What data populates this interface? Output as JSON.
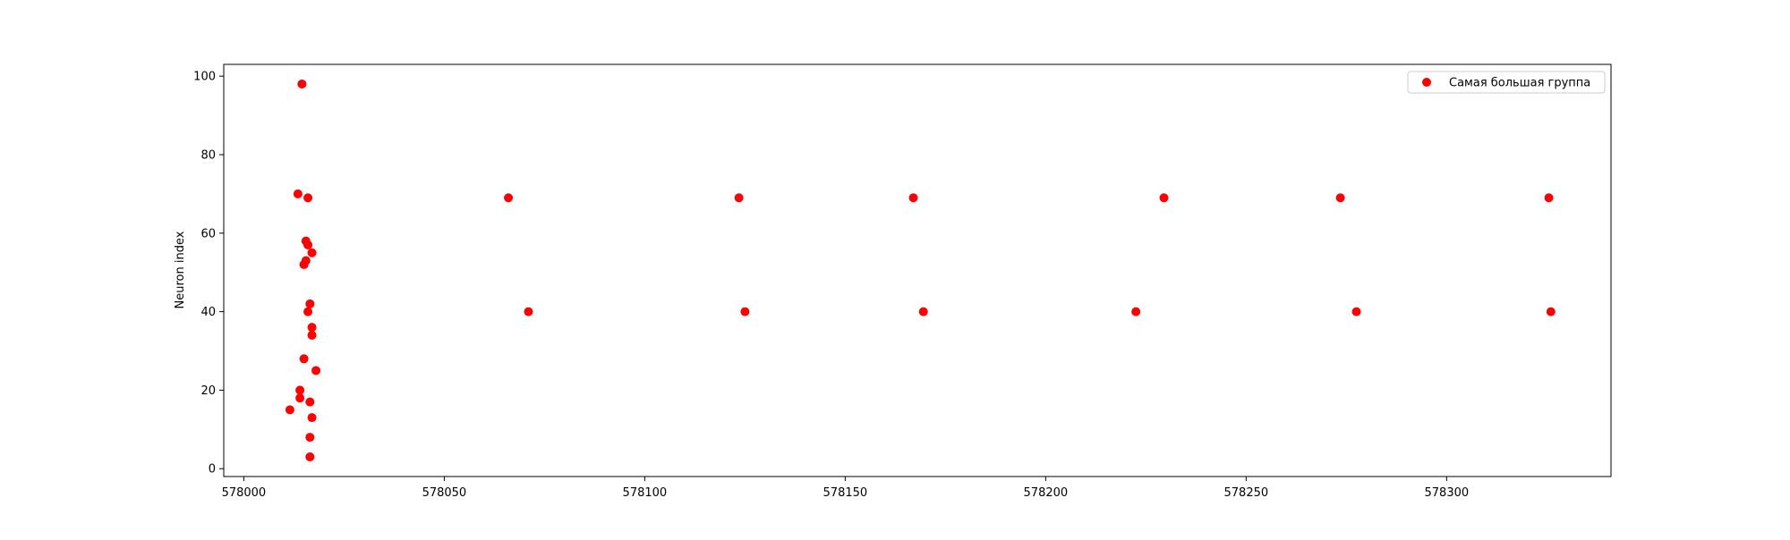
{
  "chart_data": {
    "type": "scatter",
    "title": "",
    "xlabel": "",
    "ylabel": "Neuron index",
    "xlim": [
      577995,
      578341
    ],
    "ylim": [
      -2,
      103
    ],
    "x_ticks": [
      578000,
      578050,
      578100,
      578150,
      578200,
      578250,
      578300
    ],
    "y_ticks": [
      0,
      20,
      40,
      60,
      80,
      100
    ],
    "grid": false,
    "legend_position": "top-right",
    "series": [
      {
        "name": "Самая большая группа",
        "color": "#ff0000",
        "marker": "circle",
        "points": [
          {
            "x": 578014.5,
            "y": 98
          },
          {
            "x": 578013.5,
            "y": 70
          },
          {
            "x": 578016.0,
            "y": 69
          },
          {
            "x": 578015.5,
            "y": 58
          },
          {
            "x": 578016.0,
            "y": 57
          },
          {
            "x": 578017.0,
            "y": 55
          },
          {
            "x": 578015.5,
            "y": 53
          },
          {
            "x": 578015.0,
            "y": 52
          },
          {
            "x": 578016.5,
            "y": 42
          },
          {
            "x": 578016.0,
            "y": 40
          },
          {
            "x": 578017.0,
            "y": 36
          },
          {
            "x": 578017.0,
            "y": 34
          },
          {
            "x": 578015.0,
            "y": 28
          },
          {
            "x": 578018.0,
            "y": 25
          },
          {
            "x": 578014.0,
            "y": 20
          },
          {
            "x": 578014.0,
            "y": 18
          },
          {
            "x": 578016.5,
            "y": 17
          },
          {
            "x": 578011.5,
            "y": 15
          },
          {
            "x": 578017.0,
            "y": 13
          },
          {
            "x": 578016.5,
            "y": 8
          },
          {
            "x": 578016.5,
            "y": 3
          },
          {
            "x": 578066.0,
            "y": 69
          },
          {
            "x": 578071.0,
            "y": 40
          },
          {
            "x": 578123.5,
            "y": 69
          },
          {
            "x": 578125.0,
            "y": 40
          },
          {
            "x": 578167.0,
            "y": 69
          },
          {
            "x": 578169.5,
            "y": 40
          },
          {
            "x": 578222.5,
            "y": 40
          },
          {
            "x": 578229.5,
            "y": 69
          },
          {
            "x": 578273.5,
            "y": 69
          },
          {
            "x": 578277.5,
            "y": 40
          },
          {
            "x": 578325.5,
            "y": 69
          },
          {
            "x": 578326.0,
            "y": 40
          }
        ]
      }
    ]
  }
}
